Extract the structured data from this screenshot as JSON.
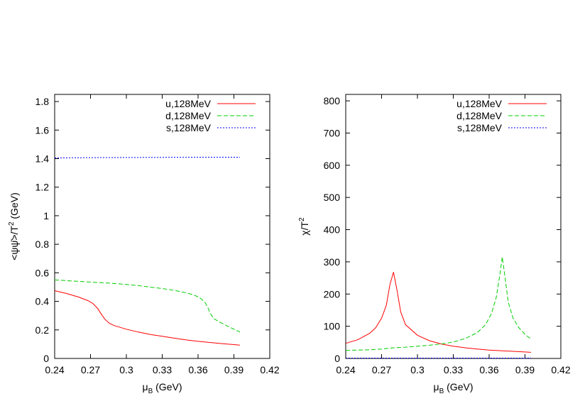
{
  "chart_data": [
    {
      "type": "line",
      "xlabel_main": "μ",
      "xlabel_sub": "B",
      "xlabel_rest": " (GeV)",
      "ylabel_main": "<ψψ̄>/T",
      "ylabel_sup": "2",
      "ylabel_rest": " (GeV)",
      "xlim": [
        0.24,
        0.42
      ],
      "ylim": [
        0,
        1.85
      ],
      "xticks": [
        "0.24",
        "0.27",
        "0.3",
        "0.33",
        "0.36",
        "0.39",
        "0.42"
      ],
      "yticks": [
        "0",
        "0.2",
        "0.4",
        "0.6",
        "0.8",
        "1",
        "1.2",
        "1.4",
        "1.6",
        "1.8"
      ],
      "legend_position": "top-right",
      "series": [
        {
          "name": "u,128MeV",
          "color": "#ff0000",
          "dash": "solid",
          "points": [
            [
              0.24,
              0.475
            ],
            [
              0.25,
              0.455
            ],
            [
              0.26,
              0.43
            ],
            [
              0.268,
              0.405
            ],
            [
              0.272,
              0.385
            ],
            [
              0.276,
              0.35
            ],
            [
              0.279,
              0.31
            ],
            [
              0.282,
              0.275
            ],
            [
              0.286,
              0.245
            ],
            [
              0.29,
              0.23
            ],
            [
              0.3,
              0.205
            ],
            [
              0.31,
              0.185
            ],
            [
              0.32,
              0.168
            ],
            [
              0.33,
              0.155
            ],
            [
              0.34,
              0.142
            ],
            [
              0.35,
              0.13
            ],
            [
              0.36,
              0.12
            ],
            [
              0.37,
              0.112
            ],
            [
              0.38,
              0.104
            ],
            [
              0.39,
              0.097
            ],
            [
              0.395,
              0.093
            ]
          ]
        },
        {
          "name": "d,128MeV",
          "color": "#00cc00",
          "dash": "dashed",
          "points": [
            [
              0.24,
              0.55
            ],
            [
              0.25,
              0.545
            ],
            [
              0.26,
              0.54
            ],
            [
              0.27,
              0.535
            ],
            [
              0.28,
              0.53
            ],
            [
              0.29,
              0.525
            ],
            [
              0.3,
              0.518
            ],
            [
              0.31,
              0.51
            ],
            [
              0.32,
              0.5
            ],
            [
              0.33,
              0.49
            ],
            [
              0.34,
              0.477
            ],
            [
              0.35,
              0.46
            ],
            [
              0.355,
              0.448
            ],
            [
              0.36,
              0.432
            ],
            [
              0.363,
              0.415
            ],
            [
              0.366,
              0.39
            ],
            [
              0.368,
              0.36
            ],
            [
              0.37,
              0.32
            ],
            [
              0.373,
              0.28
            ],
            [
              0.378,
              0.255
            ],
            [
              0.385,
              0.225
            ],
            [
              0.39,
              0.205
            ],
            [
              0.395,
              0.185
            ]
          ]
        },
        {
          "name": "s,128MeV",
          "color": "#0000ff",
          "dash": "dotted",
          "points": [
            [
              0.24,
              1.405
            ],
            [
              0.27,
              1.407
            ],
            [
              0.3,
              1.408
            ],
            [
              0.33,
              1.409
            ],
            [
              0.36,
              1.41
            ],
            [
              0.39,
              1.41
            ],
            [
              0.395,
              1.41
            ]
          ]
        }
      ]
    },
    {
      "type": "line",
      "xlabel_main": "μ",
      "xlabel_sub": "B",
      "xlabel_rest": " (GeV)",
      "ylabel_main": "χ/T",
      "ylabel_sup": "2",
      "ylabel_rest": "",
      "xlim": [
        0.24,
        0.42
      ],
      "ylim": [
        0,
        820
      ],
      "xticks": [
        "0.24",
        "0.27",
        "0.3",
        "0.33",
        "0.36",
        "0.39",
        "0.42"
      ],
      "yticks": [
        "0",
        "100",
        "200",
        "300",
        "400",
        "500",
        "600",
        "700",
        "800"
      ],
      "legend_position": "top-right",
      "series": [
        {
          "name": "u,128MeV",
          "color": "#ff0000",
          "dash": "solid",
          "points": [
            [
              0.24,
              47
            ],
            [
              0.25,
              58
            ],
            [
              0.26,
              78
            ],
            [
              0.265,
              95
            ],
            [
              0.27,
              125
            ],
            [
              0.274,
              165
            ],
            [
              0.277,
              230
            ],
            [
              0.28,
              268
            ],
            [
              0.283,
              210
            ],
            [
              0.286,
              145
            ],
            [
              0.29,
              105
            ],
            [
              0.3,
              72
            ],
            [
              0.31,
              55
            ],
            [
              0.32,
              45
            ],
            [
              0.33,
              38
            ],
            [
              0.34,
              33
            ],
            [
              0.35,
              29
            ],
            [
              0.36,
              26
            ],
            [
              0.37,
              24
            ],
            [
              0.38,
              22
            ],
            [
              0.39,
              20
            ],
            [
              0.395,
              19
            ]
          ]
        },
        {
          "name": "d,128MeV",
          "color": "#00cc00",
          "dash": "dashed",
          "points": [
            [
              0.24,
              25
            ],
            [
              0.25,
              26
            ],
            [
              0.26,
              27
            ],
            [
              0.27,
              29
            ],
            [
              0.28,
              33
            ],
            [
              0.29,
              35
            ],
            [
              0.3,
              38
            ],
            [
              0.31,
              41
            ],
            [
              0.32,
              45
            ],
            [
              0.33,
              51
            ],
            [
              0.34,
              62
            ],
            [
              0.35,
              80
            ],
            [
              0.357,
              105
            ],
            [
              0.362,
              140
            ],
            [
              0.366,
              190
            ],
            [
              0.369,
              260
            ],
            [
              0.371,
              315
            ],
            [
              0.373,
              260
            ],
            [
              0.376,
              175
            ],
            [
              0.38,
              125
            ],
            [
              0.385,
              95
            ],
            [
              0.39,
              75
            ],
            [
              0.395,
              60
            ]
          ]
        },
        {
          "name": "s,128MeV",
          "color": "#0000ff",
          "dash": "dotted",
          "points": [
            [
              0.24,
              1
            ],
            [
              0.3,
              1
            ],
            [
              0.36,
              1
            ],
            [
              0.395,
              1
            ]
          ]
        }
      ]
    }
  ]
}
